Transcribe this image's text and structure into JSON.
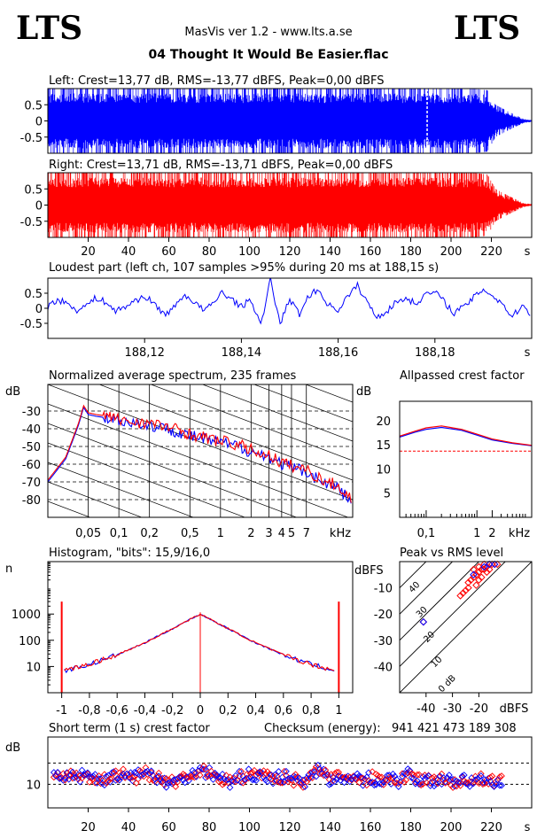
{
  "header": {
    "logo_left": "LTS",
    "logo_right": "LTS",
    "app_title": "MasVis ver 1.2 - www.lts.a.se",
    "file_title": "04 Thought It Would Be Easier.flac"
  },
  "colors": {
    "left": "#0000ff",
    "right": "#ff0000",
    "grid": "#000000"
  },
  "charts": {
    "left_waveform": {
      "title": "Left: Crest=13,77 dB, RMS=-13,77 dBFS, Peak=0,00 dBFS",
      "type": "area",
      "ytick_labels": [
        "0.5",
        "0",
        "-0.5"
      ],
      "yticks": [
        0.5,
        0,
        -0.5
      ],
      "ylim": [
        -1,
        1
      ],
      "xlim": [
        0,
        240
      ],
      "envelope": {
        "t": [
          0,
          2,
          210,
          218,
          222,
          228,
          236,
          240
        ],
        "amp": [
          1,
          1,
          1,
          0.95,
          0.5,
          0.3,
          0.06,
          0.03
        ]
      },
      "marker_x": 188.15,
      "color": "#0000ff"
    },
    "right_waveform": {
      "title": "Right: Crest=13,71 dB, RMS=-13,71 dBFS, Peak=0,00 dBFS",
      "type": "area",
      "ytick_labels": [
        "0.5",
        "0",
        "-0.5"
      ],
      "yticks": [
        0.5,
        0,
        -0.5
      ],
      "ylim": [
        -1,
        1
      ],
      "xlim": [
        0,
        240
      ],
      "xticks": [
        20,
        40,
        60,
        80,
        100,
        120,
        140,
        160,
        180,
        200,
        220
      ],
      "xtick_labels": [
        "20",
        "40",
        "60",
        "80",
        "100",
        "120",
        "140",
        "160",
        "180",
        "200",
        "220"
      ],
      "xunit": "s",
      "envelope": {
        "t": [
          0,
          2,
          210,
          218,
          222,
          228,
          236,
          240
        ],
        "amp": [
          1,
          1,
          1,
          0.95,
          0.5,
          0.3,
          0.06,
          0.03
        ]
      },
      "color": "#ff0000"
    },
    "loudest_part": {
      "title": "Loudest part (left  ch, 107 samples >95% during 20 ms at 188,15 s)",
      "type": "line",
      "ytick_labels": [
        "0.5",
        "0",
        "-0.5"
      ],
      "yticks": [
        0.5,
        0,
        -0.5
      ],
      "ylim": [
        -1,
        1
      ],
      "xlim": [
        188.1,
        188.2
      ],
      "xticks": [
        188.12,
        188.14,
        188.16,
        188.18
      ],
      "xtick_labels": [
        "188,12",
        "188,14",
        "188,16",
        "188,18"
      ],
      "xunit": "s",
      "series": {
        "x": [
          188.1,
          188.102,
          188.104,
          188.106,
          188.108,
          188.11,
          188.112,
          188.114,
          188.116,
          188.118,
          188.12,
          188.122,
          188.124,
          188.126,
          188.128,
          188.13,
          188.132,
          188.134,
          188.136,
          188.138,
          188.14,
          188.142,
          188.144,
          188.146,
          188.148,
          188.15,
          188.152,
          188.154,
          188.156,
          188.158,
          188.16,
          188.162,
          188.164,
          188.166,
          188.168,
          188.17,
          188.172,
          188.174,
          188.176,
          188.178,
          188.18,
          188.182,
          188.184,
          188.186,
          188.188,
          188.19,
          188.192,
          188.194,
          188.196,
          188.198,
          188.2
        ],
        "y": [
          0.05,
          0.3,
          0.15,
          -0.05,
          0.1,
          0.35,
          0.2,
          -0.1,
          0.05,
          0.25,
          0.4,
          0.15,
          -0.2,
          0.0,
          0.45,
          0.25,
          -0.05,
          0.1,
          0.55,
          0.3,
          0.05,
          0.3,
          -0.6,
          0.95,
          -0.5,
          0.3,
          -0.2,
          0.45,
          0.6,
          0.1,
          -0.05,
          0.4,
          0.75,
          0.2,
          -0.3,
          -0.1,
          0.2,
          0.35,
          0.15,
          0.45,
          0.55,
          0.2,
          -0.15,
          0.05,
          0.35,
          0.65,
          0.4,
          0.15,
          -0.3,
          0.1,
          -0.2
        ]
      },
      "color": "#0000ff"
    },
    "spectrum": {
      "title": "Normalized average spectrum, 235 frames",
      "type": "line",
      "ylabel": "dB",
      "ytick_labels": [
        "-30",
        "-40",
        "-50",
        "-60",
        "-70",
        "-80"
      ],
      "yticks": [
        -30,
        -40,
        -50,
        -60,
        -70,
        -80
      ],
      "ylim": [
        -90,
        -15
      ],
      "xlim": [
        0.02,
        20
      ],
      "xscale": "log",
      "xticks": [
        0.05,
        0.1,
        0.2,
        0.5,
        1,
        2,
        3,
        4,
        5,
        7
      ],
      "xtick_labels": [
        "0,05",
        "0,1",
        "0,2",
        "0,5",
        "1",
        "2",
        "3",
        "4",
        "5",
        "7"
      ],
      "xunit": "kHz",
      "series": [
        {
          "x": [
            0.02,
            0.03,
            0.04,
            0.045,
            0.05,
            0.06,
            0.08,
            0.1,
            0.15,
            0.2,
            0.3,
            0.4,
            0.5,
            0.7,
            1,
            1.5,
            2,
            3,
            4,
            5,
            7,
            10,
            14,
            20
          ],
          "y": [
            -70,
            -57,
            -38,
            -28,
            -32,
            -33,
            -34,
            -35,
            -37,
            -38,
            -40,
            -42,
            -44,
            -46,
            -48,
            -50,
            -53,
            -56,
            -60,
            -62,
            -64,
            -70,
            -73,
            -82
          ],
          "color": "#0000ff"
        },
        {
          "x": [
            0.02,
            0.03,
            0.04,
            0.045,
            0.05,
            0.06,
            0.08,
            0.1,
            0.15,
            0.2,
            0.3,
            0.4,
            0.5,
            0.7,
            1,
            1.5,
            2,
            3,
            4,
            5,
            7,
            10,
            14,
            20
          ],
          "y": [
            -69,
            -56,
            -37,
            -27,
            -31,
            -32,
            -33,
            -35,
            -36,
            -37,
            -39,
            -41,
            -43,
            -45,
            -47,
            -49,
            -52,
            -55,
            -59,
            -61,
            -63,
            -69,
            -72,
            -80
          ],
          "color": "#ff0000"
        }
      ]
    },
    "allpassed_crest": {
      "title": "Allpassed crest factor",
      "type": "line",
      "ylabel": "dB",
      "ytick_labels": [
        "20",
        "15",
        "10",
        "5"
      ],
      "yticks": [
        20,
        15,
        10,
        5
      ],
      "ylim": [
        0,
        24
      ],
      "xlim": [
        0.03,
        12
      ],
      "xscale": "log",
      "xticks": [
        0.1,
        1,
        2
      ],
      "xtick_labels": [
        "0,1",
        "1",
        "2"
      ],
      "xunit": "kHz",
      "reference_line": 13.7,
      "series": [
        {
          "x": [
            0.03,
            0.06,
            0.1,
            0.2,
            0.5,
            1,
            2,
            5,
            12
          ],
          "y": [
            16.6,
            17.6,
            18.2,
            18.6,
            18.0,
            17.0,
            16.0,
            15.3,
            14.8
          ],
          "color": "#0000ff"
        },
        {
          "x": [
            0.03,
            0.06,
            0.1,
            0.2,
            0.5,
            1,
            2,
            5,
            12
          ],
          "y": [
            16.8,
            17.8,
            18.5,
            18.9,
            18.2,
            17.2,
            16.2,
            15.4,
            14.9
          ],
          "color": "#ff0000"
        }
      ]
    },
    "histogram": {
      "title": "Histogram, \"bits\": 15,9/16,0",
      "type": "line",
      "ylabel": "n",
      "ytick_labels": [
        "1000",
        "100",
        "10"
      ],
      "yticks": [
        1000,
        100,
        10
      ],
      "ylim": [
        1,
        100000
      ],
      "yscale": "log",
      "xlim": [
        -1.1,
        1.1
      ],
      "xticks": [
        -1,
        -0.8,
        -0.6,
        -0.4,
        -0.2,
        0,
        0.2,
        0.4,
        0.6,
        0.8,
        1
      ],
      "xtick_labels": [
        "-1",
        "-0,8",
        "-0,6",
        "-0,4",
        "-0,2",
        "0",
        "0,2",
        "0,4",
        "0,6",
        "0,8",
        "1"
      ],
      "series": [
        {
          "x": [
            -0.98,
            -0.8,
            -0.6,
            -0.4,
            -0.2,
            0,
            0.2,
            0.4,
            0.6,
            0.8,
            0.98
          ],
          "y": [
            7,
            12,
            28,
            80,
            280,
            1000,
            280,
            80,
            28,
            12,
            7
          ],
          "color": "#0000ff"
        },
        {
          "x": [
            -0.98,
            -0.8,
            -0.6,
            -0.4,
            -0.2,
            0,
            0.2,
            0.4,
            0.6,
            0.8,
            0.98
          ],
          "y": [
            7,
            12,
            28,
            80,
            280,
            1000,
            280,
            80,
            28,
            12,
            7
          ],
          "color": "#ff0000"
        }
      ],
      "clip_spikes": {
        "x": [
          -1,
          1
        ],
        "y": [
          3000,
          3000
        ]
      }
    },
    "peak_vs_rms": {
      "title": "Peak vs RMS level",
      "type": "scatter",
      "ylabel": "dBFS",
      "ytick_labels": [
        "-10",
        "-20",
        "-30",
        "-40"
      ],
      "yticks": [
        -10,
        -20,
        -30,
        -40
      ],
      "ylim": [
        -50,
        0
      ],
      "xlim": [
        -50,
        0
      ],
      "xticks": [
        -40,
        -30,
        -20
      ],
      "xtick_labels": [
        "-40",
        "-30",
        "-20"
      ],
      "xunit": "dBFS",
      "diagonal_labels": [
        "40",
        "30",
        "20",
        "10",
        "0 dB"
      ],
      "diagonal_offsets": [
        40,
        30,
        20,
        10,
        0
      ],
      "points_red": [
        [
          -24,
          -8
        ],
        [
          -23,
          -7
        ],
        [
          -22,
          -6
        ],
        [
          -21,
          -5
        ],
        [
          -20,
          -4
        ],
        [
          -19,
          -3
        ],
        [
          -18,
          -3
        ],
        [
          -17,
          -2
        ],
        [
          -16,
          -1
        ],
        [
          -15,
          -1
        ],
        [
          -14,
          -1
        ],
        [
          -13,
          -1
        ],
        [
          -18,
          -1
        ],
        [
          -20,
          -2
        ],
        [
          -22,
          -3
        ],
        [
          -25,
          -11
        ],
        [
          -26,
          -12
        ],
        [
          -27,
          -13
        ],
        [
          -24,
          -10
        ],
        [
          -21,
          -9
        ],
        [
          -20,
          -7
        ],
        [
          -19,
          -6
        ],
        [
          -17,
          -4
        ],
        [
          -16,
          -3
        ],
        [
          -41,
          -23
        ]
      ],
      "points_blue": [
        [
          -18,
          -2
        ],
        [
          -16,
          -1
        ],
        [
          -14,
          -1
        ],
        [
          -22,
          -5
        ],
        [
          -41,
          -23
        ]
      ]
    },
    "short_term_crest": {
      "title": "Short term (1 s) crest factor",
      "checksum": "Checksum (energy):   941 421 473 189 308",
      "type": "scatter",
      "ylabel": "dB",
      "ytick_labels": [
        "10"
      ],
      "yticks": [
        10
      ],
      "ylim": [
        0,
        30
      ],
      "xlim": [
        0,
        240
      ],
      "xticks": [
        20,
        40,
        60,
        80,
        100,
        120,
        140,
        160,
        180,
        200,
        220
      ],
      "xtick_labels": [
        "20",
        "40",
        "60",
        "80",
        "100",
        "120",
        "140",
        "160",
        "180",
        "200",
        "220"
      ],
      "xunit": "s",
      "ref_lines": [
        19,
        10
      ],
      "mean_values": [
        14,
        14,
        13,
        14,
        13,
        14,
        13,
        13,
        12,
        12,
        13,
        14,
        14,
        13,
        13,
        14,
        15,
        14,
        13,
        12,
        11,
        11,
        12,
        13,
        14,
        15,
        16,
        15,
        14,
        13,
        12,
        11,
        12,
        13,
        14,
        14,
        13,
        14,
        13,
        12,
        13,
        13,
        12,
        12,
        11,
        13,
        15,
        16,
        14,
        12,
        13,
        12,
        13,
        12,
        12,
        11,
        13,
        12,
        12,
        13,
        12,
        11,
        13,
        14,
        12,
        12,
        13,
        11,
        12,
        12,
        12,
        11,
        11,
        12,
        11,
        11,
        12,
        11,
        11,
        12
      ]
    }
  }
}
